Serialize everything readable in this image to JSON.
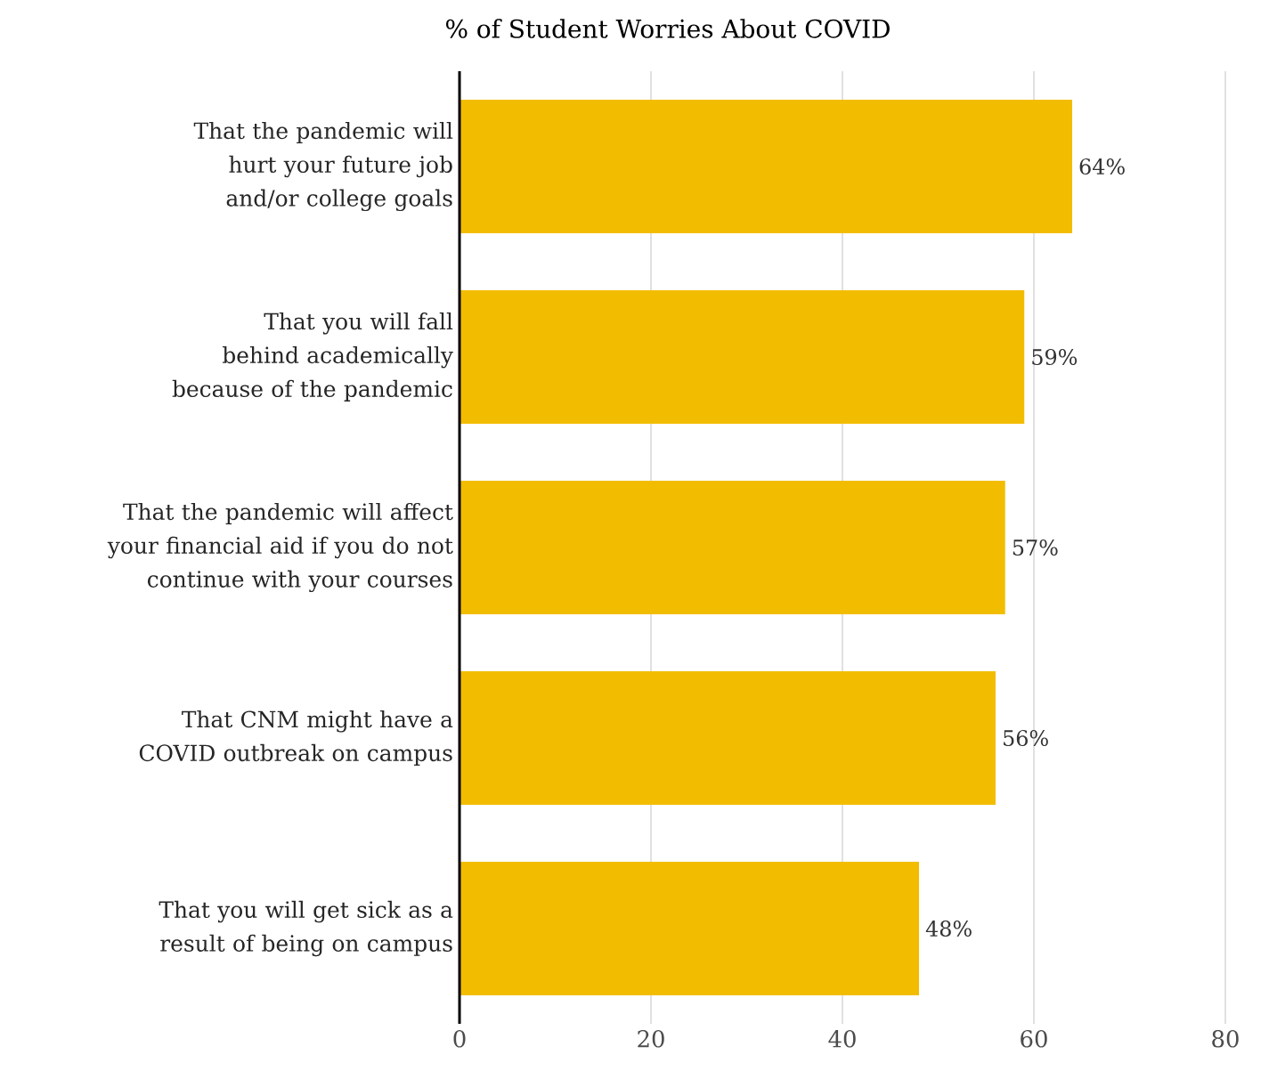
{
  "chart_data": {
    "type": "bar",
    "orientation": "horizontal",
    "title": "% of Student Worries About COVID",
    "categories": [
      "That the pandemic will hurt your future job and/or college goals",
      "That you will fall behind academically because of the pandemic",
      "That the pandemic will affect your financial aid if you do not continue with your courses",
      "That CNM might have a COVID outbreak on campus",
      "That you will get sick as a result of being on campus"
    ],
    "values": [
      64,
      59,
      57,
      56,
      48
    ],
    "value_labels": [
      "64%",
      "59%",
      "57%",
      "56%",
      "48%"
    ],
    "color": "#f2bd00",
    "xlim": [
      0,
      80
    ],
    "xticks": [
      0,
      20,
      40,
      60,
      80
    ],
    "grid": "x"
  }
}
